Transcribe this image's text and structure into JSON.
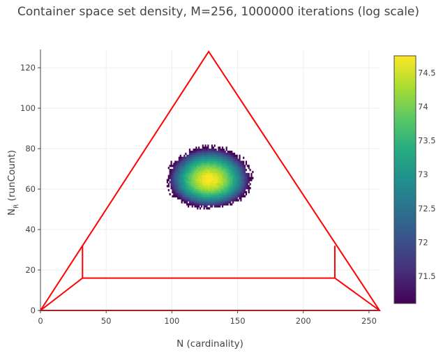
{
  "chart_data": {
    "type": "heatmap",
    "title": "Container space set density, M=256, 1000000 iterations (log scale)",
    "xlabel": "N (cardinality)",
    "ylabel_main": "N",
    "ylabel_sub": "R",
    "ylabel_rest": " (runCount)",
    "xlim": [
      0,
      258
    ],
    "ylim": [
      0,
      129
    ],
    "xticks": [
      0,
      50,
      100,
      150,
      200,
      250
    ],
    "yticks": [
      0,
      20,
      40,
      60,
      80,
      100,
      120
    ],
    "grid": true,
    "density_blob": {
      "center": [
        128,
        64
      ],
      "x_range": [
        90,
        166
      ],
      "y_range": [
        48,
        84
      ],
      "value_range": [
        71.1,
        74.75
      ]
    },
    "colorbar": {
      "colorscale": "viridis",
      "range": [
        71.1,
        74.75
      ],
      "ticks": [
        71.5,
        72,
        72.5,
        73,
        73.5,
        74,
        74.5
      ]
    },
    "boundary": {
      "color": "#ff0000",
      "triangle": [
        [
          0,
          0
        ],
        [
          128,
          128
        ],
        [
          258,
          0
        ]
      ],
      "inner_polyline": [
        [
          0,
          0
        ],
        [
          32,
          16
        ],
        [
          224,
          16
        ],
        [
          258,
          0
        ]
      ],
      "left_vertical": [
        [
          32,
          16
        ],
        [
          32,
          32
        ]
      ],
      "right_vertical": [
        [
          224,
          16
        ],
        [
          224,
          32
        ]
      ]
    }
  }
}
